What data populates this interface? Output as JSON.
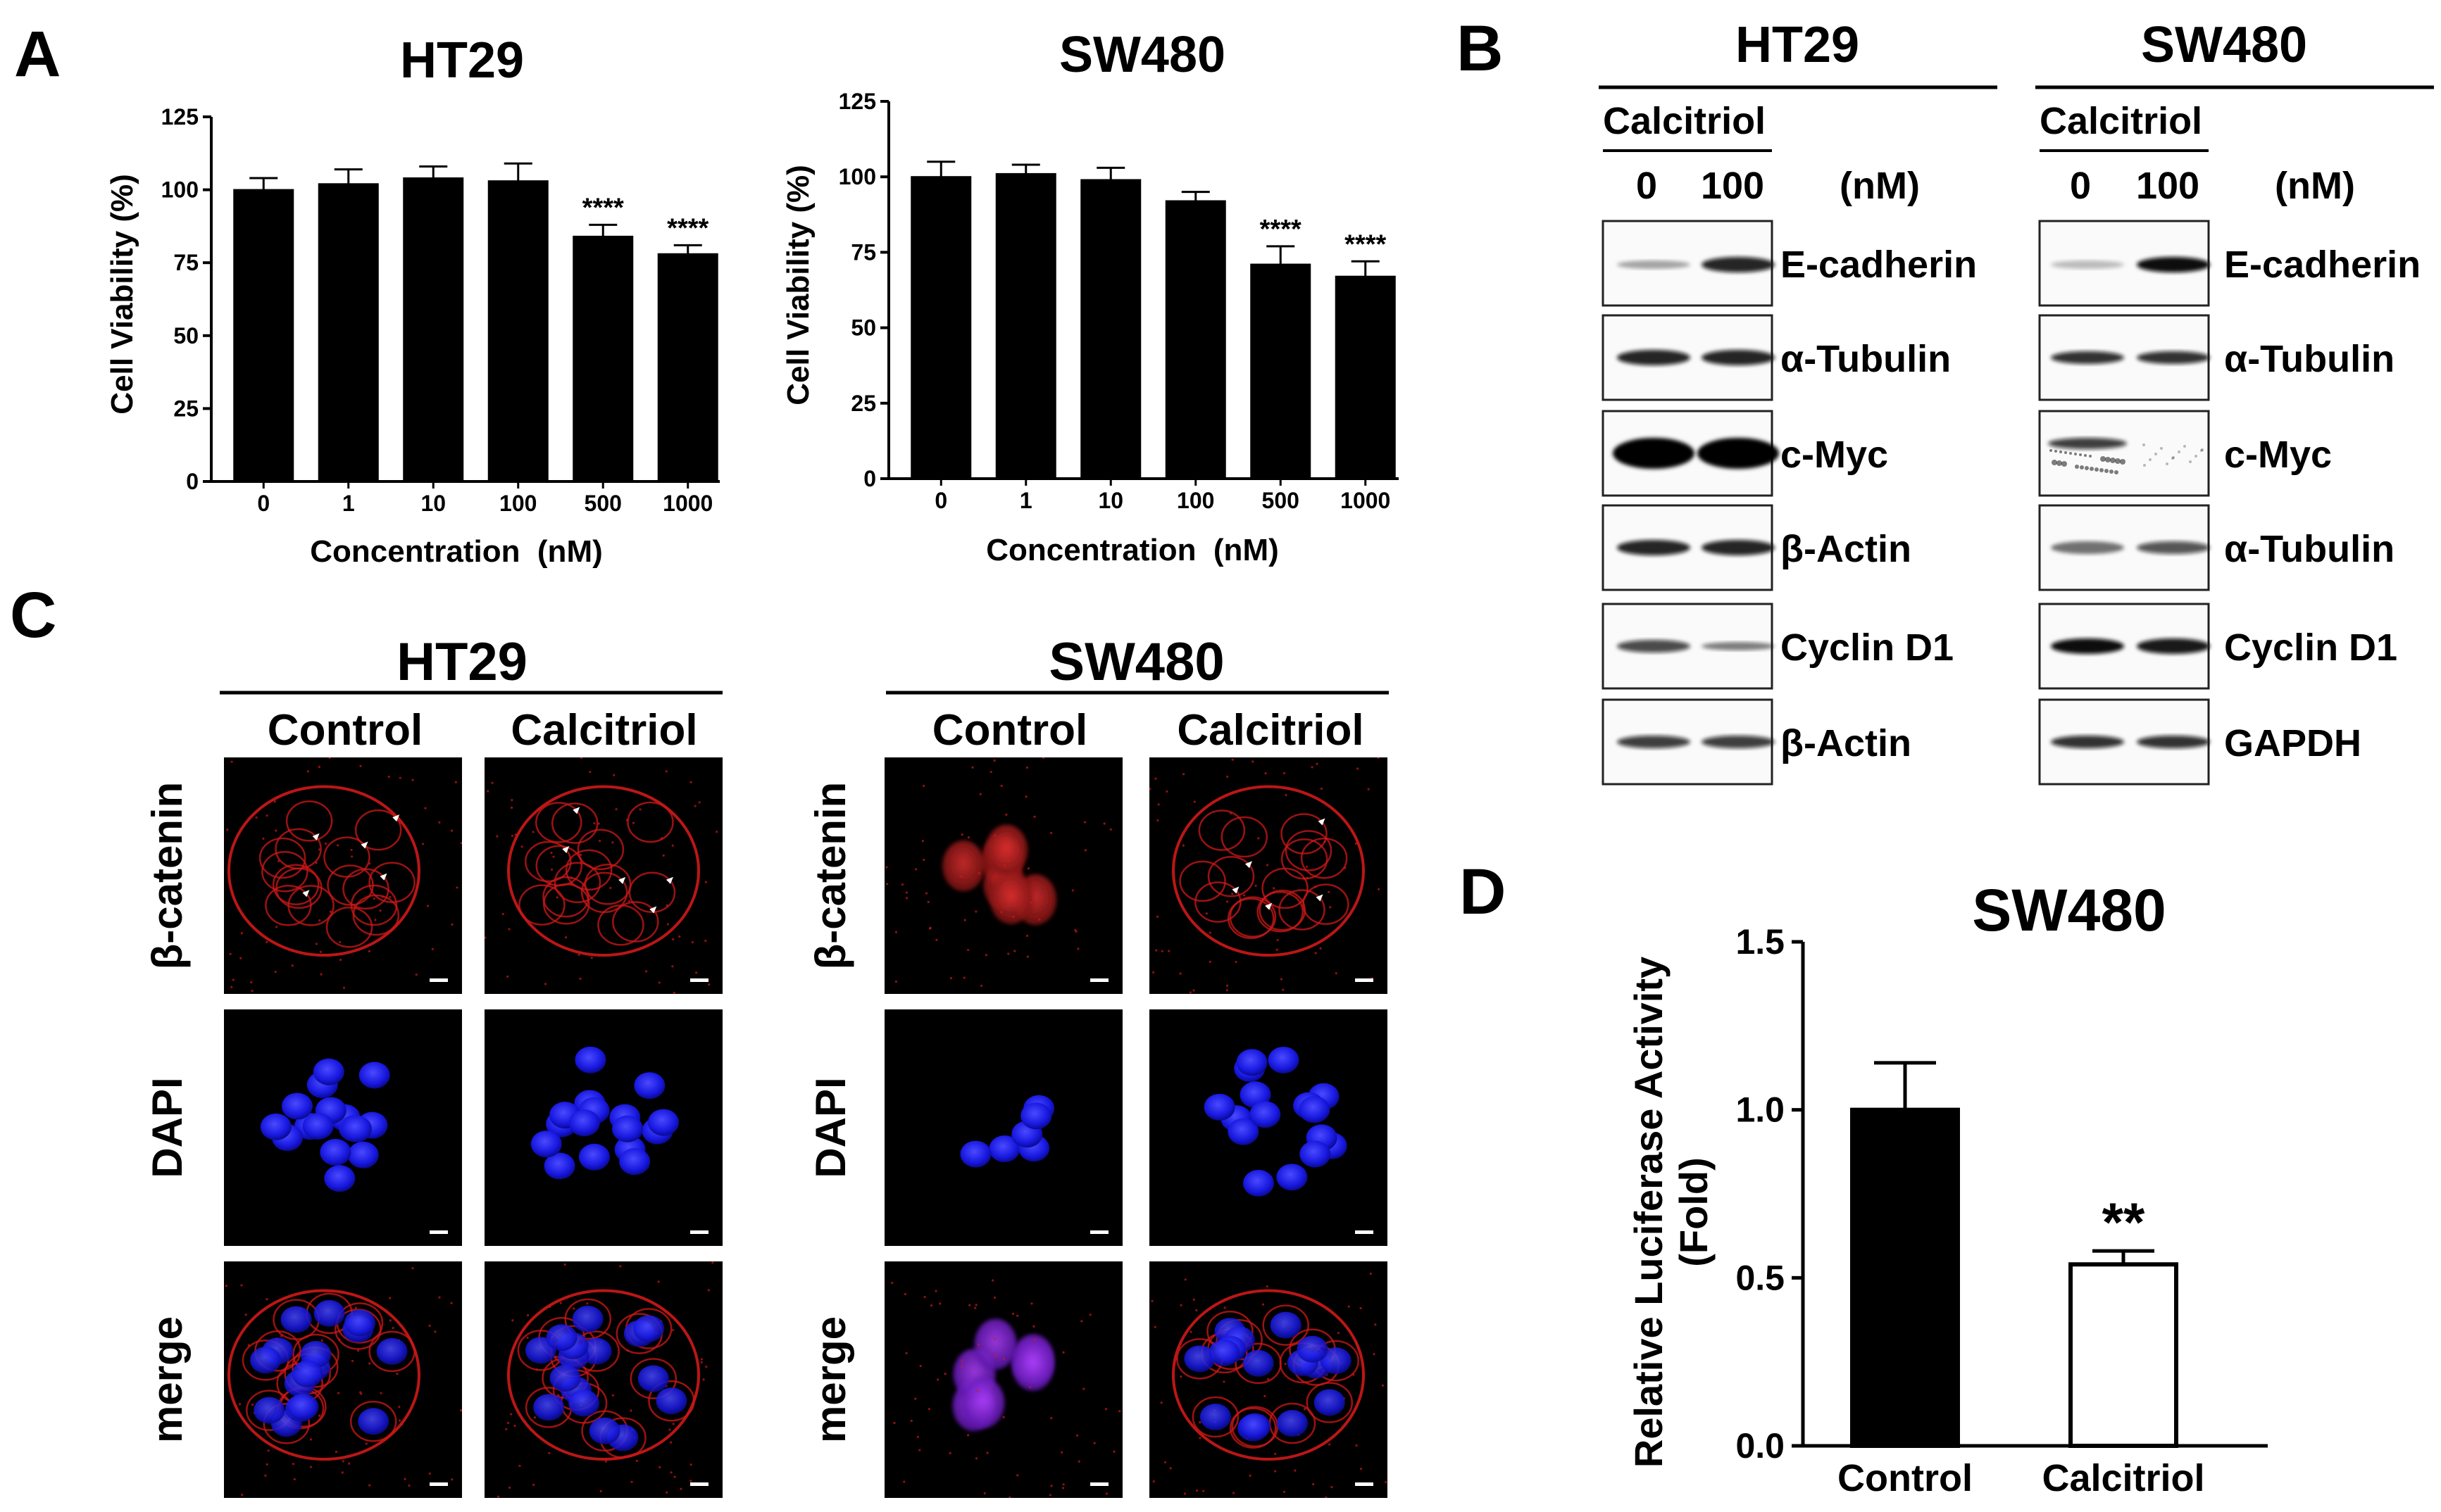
{
  "panels": {
    "A": "A",
    "B": "B",
    "C": "C",
    "D": "D"
  },
  "chart_data": [
    {
      "type": "bar",
      "title": "HT29",
      "xlabel": "Concentration  (nM)",
      "ylabel": "Cell Viability (%)",
      "categories": [
        "0",
        "1",
        "10",
        "100",
        "500",
        "1000"
      ],
      "values": [
        100,
        102,
        104,
        103,
        84,
        78
      ],
      "errors": [
        4,
        5,
        4,
        6,
        4,
        3
      ],
      "significance": [
        "",
        "",
        "",
        "",
        "****",
        "****"
      ],
      "ylim": [
        0,
        125
      ],
      "yticks": [
        "0",
        "25",
        "50",
        "75",
        "100",
        "125"
      ]
    },
    {
      "type": "bar",
      "title": "SW480",
      "xlabel": "Concentration  (nM)",
      "ylabel": "Cell Viability (%)",
      "categories": [
        "0",
        "1",
        "10",
        "100",
        "500",
        "1000"
      ],
      "values": [
        100,
        101,
        99,
        92,
        71,
        67
      ],
      "errors": [
        5,
        3,
        4,
        3,
        6,
        5
      ],
      "significance": [
        "",
        "",
        "",
        "",
        "****",
        "****"
      ],
      "ylim": [
        0,
        125
      ],
      "yticks": [
        "0",
        "25",
        "50",
        "75",
        "100",
        "125"
      ]
    },
    {
      "type": "bar",
      "title": "SW480",
      "xlabel": "",
      "ylabel": "Relative Luciferase Activity",
      "ylabel2": "(Fold)",
      "categories": [
        "Control",
        "Calcitriol"
      ],
      "values": [
        1.0,
        0.54
      ],
      "errors": [
        0.14,
        0.04
      ],
      "significance": [
        "",
        "**"
      ],
      "ylim": [
        0,
        1.5
      ],
      "yticks": [
        "0.0",
        "0.5",
        "1.0",
        "1.5"
      ],
      "fills": [
        "#000000",
        "#ffffff"
      ]
    }
  ],
  "western": {
    "groups": [
      {
        "title": "HT29",
        "treatment": "Calcitriol",
        "doses": [
          "0",
          "100"
        ],
        "unit": "(nM)",
        "proteins": [
          "E-cadherin",
          "α-Tubulin",
          "c-Myc",
          "β-Actin",
          "Cyclin D1",
          "β-Actin"
        ]
      },
      {
        "title": "SW480",
        "treatment": "Calcitriol",
        "doses": [
          "0",
          "100"
        ],
        "unit": "(nM)",
        "proteins": [
          "E-cadherin",
          "α-Tubulin",
          "c-Myc",
          "α-Tubulin",
          "Cyclin D1",
          "GAPDH"
        ]
      }
    ]
  },
  "microscopy": {
    "groups": [
      {
        "title": "HT29",
        "conditions": [
          "Control",
          "Calcitriol"
        ]
      },
      {
        "title": "SW480",
        "conditions": [
          "Control",
          "Calcitriol"
        ]
      }
    ],
    "stains": [
      "β-catenin",
      "DAPI",
      "merge"
    ],
    "colors": {
      "catenin": "#d01818",
      "dapi": "#1a1aff",
      "background": "#000000"
    }
  }
}
